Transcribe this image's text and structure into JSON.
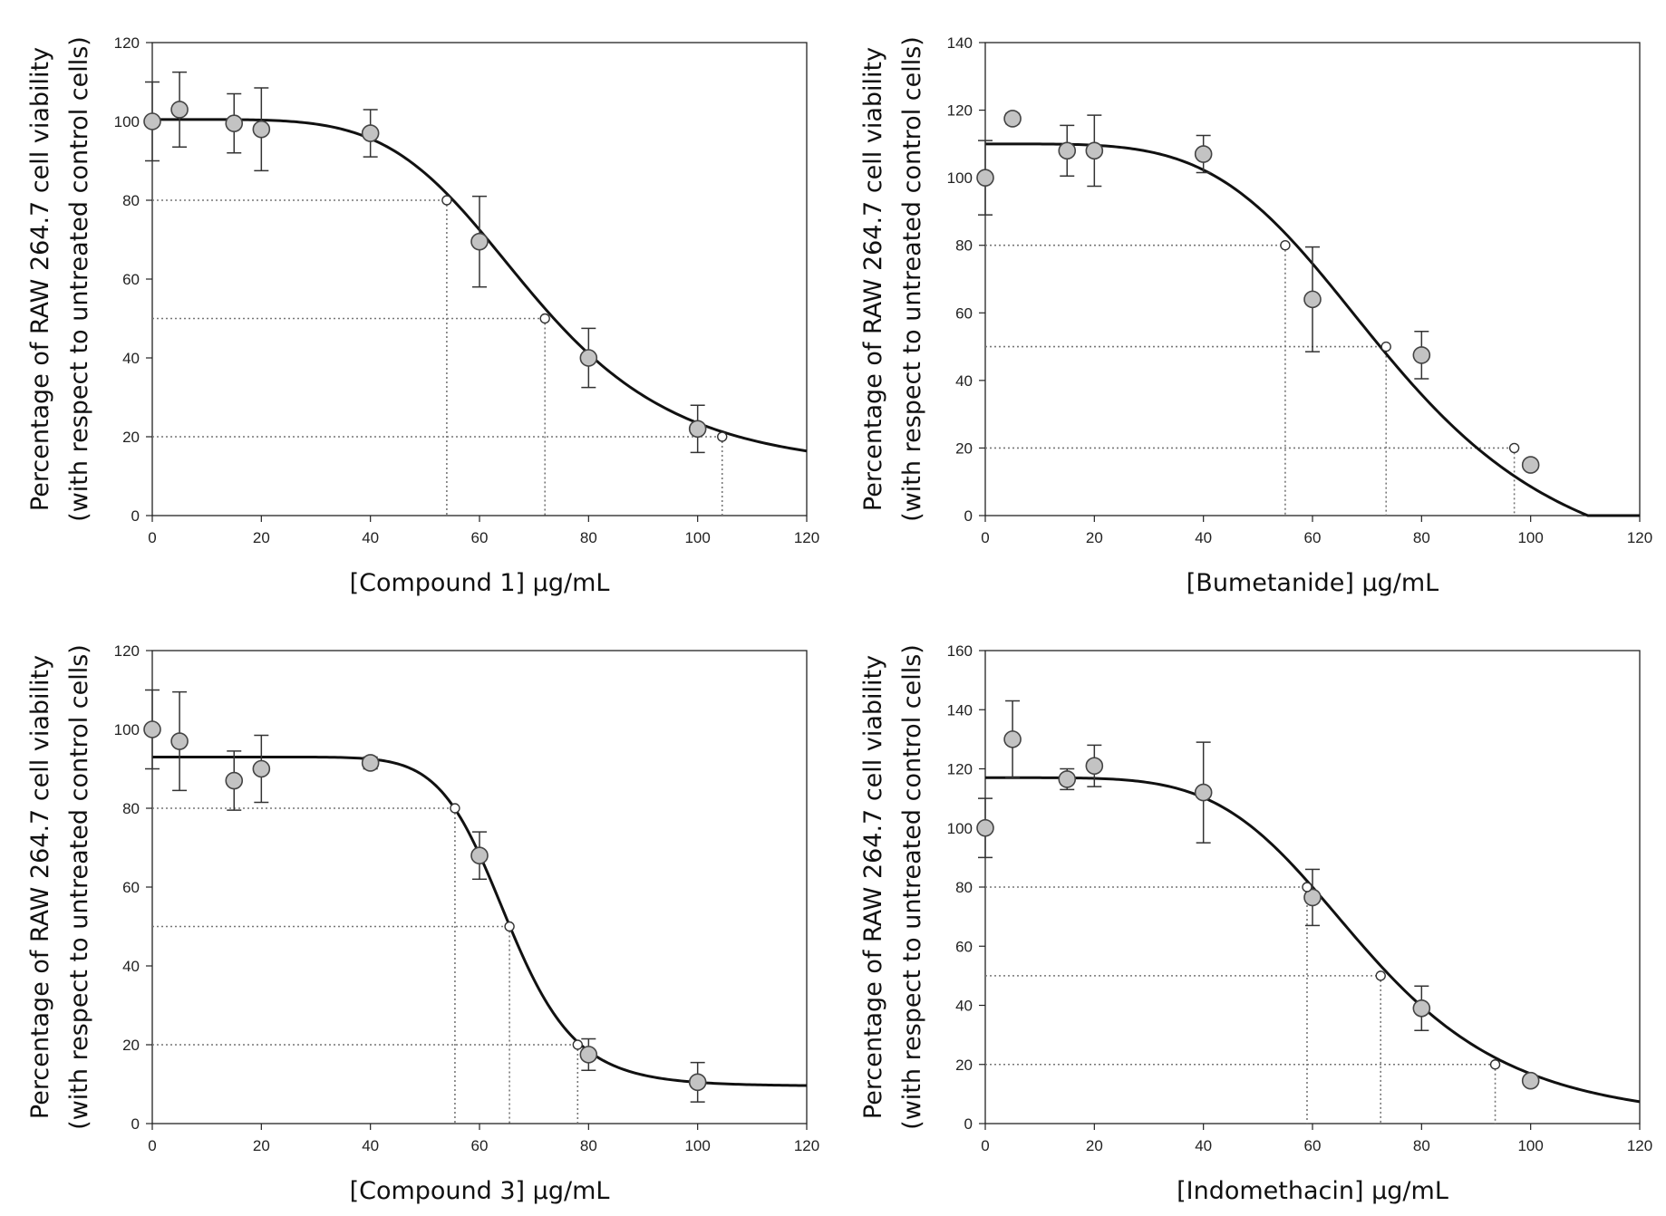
{
  "chart_data": [
    {
      "type": "scatter",
      "title": "",
      "xlabel": "[Compound 1] μg/mL",
      "ylabel_line1": "Percentage of RAW 264.7 cell viability",
      "ylabel_line2": "(with respect to untreated control cells)",
      "xlim": [
        0,
        120
      ],
      "ylim": [
        0,
        120
      ],
      "xticks": [
        0,
        20,
        40,
        60,
        80,
        100,
        120
      ],
      "yticks": [
        0,
        20,
        40,
        60,
        80,
        100,
        120
      ],
      "grid": false,
      "legend": "none",
      "points": [
        {
          "x": 0,
          "y": 100,
          "err": 10
        },
        {
          "x": 5,
          "y": 103,
          "err": 9.5
        },
        {
          "x": 15,
          "y": 99.5,
          "err": 7.5
        },
        {
          "x": 20,
          "y": 98,
          "err": 10.5
        },
        {
          "x": 40,
          "y": 97,
          "err": 6
        },
        {
          "x": 60,
          "y": 69.5,
          "err": 11.5
        },
        {
          "x": 80,
          "y": 40,
          "err": 7.5
        },
        {
          "x": 100,
          "y": 22,
          "err": 6
        }
      ],
      "fit": {
        "top": 100.5,
        "bottom": 11,
        "ec50": 70,
        "hill": 5.1
      },
      "markers": [
        {
          "x": 54,
          "y": 80
        },
        {
          "x": 72,
          "y": 50
        },
        {
          "x": 104.5,
          "y": 20
        }
      ]
    },
    {
      "type": "scatter",
      "title": "",
      "xlabel": "[Bumetanide] μg/mL",
      "ylabel_line1": "Percentage of RAW 264.7 cell viability",
      "ylabel_line2": "(with respect to untreated control cells)",
      "xlim": [
        0,
        120
      ],
      "ylim": [
        0,
        140
      ],
      "xticks": [
        0,
        20,
        40,
        60,
        80,
        100,
        120
      ],
      "yticks": [
        0,
        20,
        40,
        60,
        80,
        100,
        120,
        140
      ],
      "grid": false,
      "legend": "none",
      "points": [
        {
          "x": 0,
          "y": 100,
          "err": 11
        },
        {
          "x": 5,
          "y": 117.5,
          "err": 1.5
        },
        {
          "x": 15,
          "y": 108,
          "err": 7.5
        },
        {
          "x": 20,
          "y": 108,
          "err": 10.5
        },
        {
          "x": 40,
          "y": 107,
          "err": 5.5
        },
        {
          "x": 60,
          "y": 64,
          "err": 15.5
        },
        {
          "x": 80,
          "y": 47.5,
          "err": 7
        },
        {
          "x": 100,
          "y": 15,
          "err": 0
        }
      ],
      "fit": {
        "top": 110,
        "bottom": -20,
        "ec50": 75,
        "hill": 4.4
      },
      "markers": [
        {
          "x": 55,
          "y": 80
        },
        {
          "x": 73.5,
          "y": 50
        },
        {
          "x": 97,
          "y": 20
        }
      ]
    },
    {
      "type": "scatter",
      "title": "",
      "xlabel": "[Compound 3] μg/mL",
      "ylabel_line1": "Percentage of RAW 264.7 cell viability",
      "ylabel_line2": "(with respect to untreated control cells)",
      "xlim": [
        0,
        120
      ],
      "ylim": [
        0,
        120
      ],
      "xticks": [
        0,
        20,
        40,
        60,
        80,
        100,
        120
      ],
      "yticks": [
        0,
        20,
        40,
        60,
        80,
        100,
        120
      ],
      "grid": false,
      "legend": "none",
      "points": [
        {
          "x": 0,
          "y": 100,
          "err": 10
        },
        {
          "x": 5,
          "y": 97,
          "err": 12.5
        },
        {
          "x": 15,
          "y": 87,
          "err": 7.5
        },
        {
          "x": 20,
          "y": 90,
          "err": 8.5
        },
        {
          "x": 40,
          "y": 91.5,
          "err": 1.5
        },
        {
          "x": 60,
          "y": 68,
          "err": 6
        },
        {
          "x": 80,
          "y": 17.5,
          "err": 4
        },
        {
          "x": 100,
          "y": 10.5,
          "err": 5
        }
      ],
      "fit": {
        "top": 93,
        "bottom": 9.5,
        "ec50": 65.2,
        "hill": 10.4
      },
      "markers": [
        {
          "x": 55.5,
          "y": 80
        },
        {
          "x": 65.5,
          "y": 50
        },
        {
          "x": 78,
          "y": 20
        }
      ]
    },
    {
      "type": "scatter",
      "title": "",
      "xlabel": "[Indomethacin] μg/mL",
      "ylabel_line1": "Percentage of RAW 264.7 cell viability",
      "ylabel_line2": "(with respect to untreated control cells)",
      "xlim": [
        0,
        120
      ],
      "ylim": [
        0,
        160
      ],
      "xticks": [
        0,
        20,
        40,
        60,
        80,
        100,
        120
      ],
      "yticks": [
        0,
        20,
        40,
        60,
        80,
        100,
        120,
        140,
        160
      ],
      "grid": false,
      "legend": "none",
      "points": [
        {
          "x": 0,
          "y": 100,
          "err": 10
        },
        {
          "x": 5,
          "y": 130,
          "err": 13
        },
        {
          "x": 15,
          "y": 116.5,
          "err": 3.5
        },
        {
          "x": 20,
          "y": 121,
          "err": 7
        },
        {
          "x": 40,
          "y": 112,
          "err": 17
        },
        {
          "x": 60,
          "y": 76.5,
          "err": 9.5
        },
        {
          "x": 80,
          "y": 39,
          "err": 7.5
        },
        {
          "x": 100,
          "y": 14.5,
          "err": 0
        }
      ],
      "fit": {
        "top": 117,
        "bottom": 0,
        "ec50": 70,
        "hill": 5.0
      },
      "markers": [
        {
          "x": 59,
          "y": 80
        },
        {
          "x": 72.5,
          "y": 50
        },
        {
          "x": 93.5,
          "y": 20
        }
      ]
    }
  ]
}
